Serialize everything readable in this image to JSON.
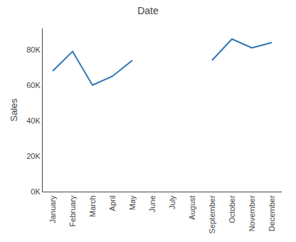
{
  "chart_data": {
    "type": "line",
    "title": "Date",
    "ylabel": "Sales",
    "categories": [
      "January",
      "February",
      "March",
      "April",
      "May",
      "June",
      "July",
      "August",
      "September",
      "October",
      "November",
      "December"
    ],
    "values": [
      68000,
      79000,
      60000,
      65000,
      74000,
      null,
      null,
      null,
      74000,
      86000,
      81000,
      84000
    ],
    "color": "#2E75B6",
    "ylim": [
      0,
      92000
    ],
    "yticks": [
      {
        "value": 0,
        "label": "0K"
      },
      {
        "value": 20000,
        "label": "20K"
      },
      {
        "value": 40000,
        "label": "40K"
      },
      {
        "value": 60000,
        "label": "60K"
      },
      {
        "value": 80000,
        "label": "80K"
      }
    ],
    "grid": false
  }
}
